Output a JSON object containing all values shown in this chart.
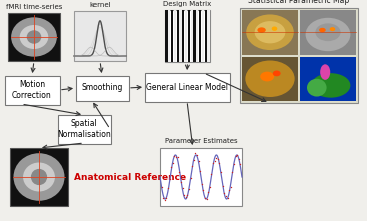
{
  "bg_color": "#f0efeb",
  "border_color": "#999999",
  "box_facecolor": "#ffffff",
  "box_edgecolor": "#777777",
  "arrow_color": "#333333",
  "red_text_color": "#cc0000",
  "labels": {
    "fmri": "fMRI time-series",
    "kernel": "kernel",
    "design": "Design Matrix",
    "spm": "Statistical Parametric Map",
    "motion": "Motion\nCorrection",
    "smoothing": "Smoothing",
    "glm": "General Linear Model",
    "spatial": "Spatial\nNormalisation",
    "anatomical": "Anatomical Reference",
    "param": "Parameter Estimates"
  }
}
